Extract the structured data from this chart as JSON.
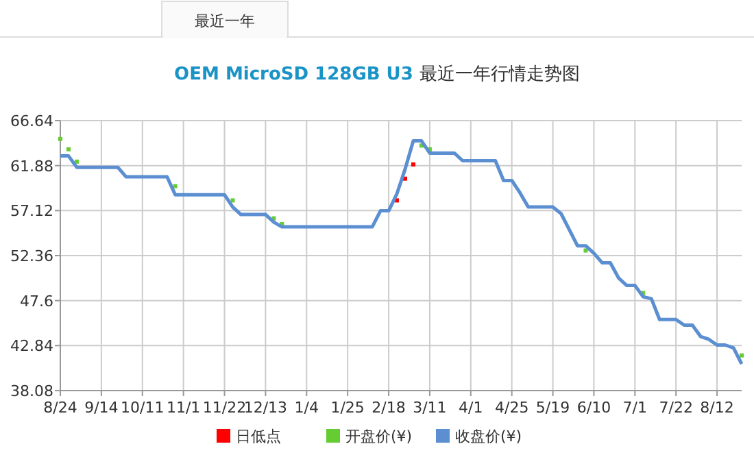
{
  "chart_data": {
    "type": "line",
    "title": "OEM MicroSD 128GB U3 最近一年行情走势图",
    "annotations": [
      "最近一年"
    ],
    "categories": [
      "8/24",
      null,
      null,
      null,
      null,
      "9/14",
      null,
      null,
      null,
      null,
      "10/11",
      null,
      null,
      null,
      null,
      "11/1",
      null,
      null,
      null,
      null,
      "11/22",
      null,
      null,
      null,
      null,
      "12/13",
      null,
      null,
      null,
      null,
      "1/4",
      null,
      null,
      null,
      null,
      "1/25",
      null,
      null,
      null,
      null,
      "2/18",
      null,
      null,
      null,
      null,
      "3/11",
      null,
      null,
      null,
      null,
      "4/1",
      null,
      null,
      null,
      null,
      "4/25",
      null,
      null,
      null,
      null,
      "5/19",
      null,
      null,
      null,
      null,
      "6/10",
      null,
      null,
      null,
      null,
      "7/1",
      null,
      null,
      null,
      null,
      "7/22",
      null,
      null,
      null,
      null,
      "8/12",
      null,
      null,
      null
    ],
    "ylim": [
      38.08,
      66.64
    ],
    "yticks": [
      38.08,
      42.84,
      47.6,
      52.36,
      57.12,
      61.88,
      66.64
    ],
    "grid": true,
    "legend": "bottom",
    "series": [
      {
        "name": "日低点",
        "type": "scatter",
        "marker": "square",
        "color": "#ff0000",
        "values": [
          null,
          null,
          null,
          null,
          null,
          null,
          null,
          null,
          null,
          null,
          null,
          null,
          null,
          null,
          null,
          null,
          null,
          null,
          null,
          null,
          null,
          null,
          null,
          null,
          null,
          null,
          null,
          null,
          null,
          null,
          null,
          null,
          null,
          null,
          null,
          null,
          null,
          null,
          null,
          null,
          null,
          58.2,
          60.5,
          62.0,
          null,
          null,
          null,
          null,
          null,
          null,
          null,
          null,
          null,
          null,
          null,
          null,
          null,
          null,
          null,
          null,
          null,
          null,
          null,
          null,
          null,
          null,
          null,
          null,
          null,
          null,
          null,
          null,
          null,
          null,
          null,
          null,
          null,
          null,
          null,
          null,
          null,
          null,
          null,
          null
        ]
      },
      {
        "name": "开盘价(¥)",
        "type": "scatter",
        "marker": "square",
        "color": "#66cc33",
        "values": [
          64.7,
          63.6,
          62.3,
          null,
          null,
          null,
          null,
          null,
          null,
          null,
          null,
          null,
          null,
          null,
          59.7,
          null,
          null,
          null,
          null,
          null,
          null,
          58.2,
          null,
          null,
          null,
          null,
          56.3,
          55.7,
          null,
          null,
          null,
          null,
          null,
          null,
          null,
          null,
          null,
          null,
          null,
          null,
          null,
          null,
          null,
          null,
          64.0,
          63.6,
          null,
          null,
          null,
          null,
          null,
          null,
          null,
          null,
          null,
          null,
          null,
          null,
          null,
          null,
          null,
          null,
          null,
          null,
          52.9,
          null,
          null,
          null,
          null,
          null,
          null,
          48.4,
          null,
          null,
          null,
          null,
          null,
          null,
          null,
          null,
          null,
          null,
          null,
          41.8
        ]
      },
      {
        "name": "收盘价(¥)",
        "marker": "none",
        "color": "#5b8fd1",
        "values": [
          62.9,
          62.9,
          61.7,
          61.7,
          61.7,
          61.7,
          61.7,
          61.7,
          60.7,
          60.7,
          60.7,
          60.7,
          60.7,
          60.7,
          58.8,
          58.8,
          58.8,
          58.8,
          58.8,
          58.8,
          58.8,
          57.5,
          56.7,
          56.7,
          56.7,
          56.7,
          55.9,
          55.4,
          55.4,
          55.4,
          55.4,
          55.4,
          55.4,
          55.4,
          55.4,
          55.4,
          55.4,
          55.4,
          55.4,
          57.1,
          57.1,
          58.9,
          61.5,
          64.5,
          64.5,
          63.2,
          63.2,
          63.2,
          63.2,
          62.4,
          62.4,
          62.4,
          62.4,
          62.4,
          60.3,
          60.3,
          59.0,
          57.5,
          57.5,
          57.5,
          57.5,
          56.8,
          55.1,
          53.4,
          53.4,
          52.6,
          51.6,
          51.6,
          50.0,
          49.2,
          49.2,
          48.0,
          47.8,
          45.6,
          45.6,
          45.6,
          45.0,
          45.0,
          43.8,
          43.5,
          42.9,
          42.9,
          42.6,
          40.9
        ]
      }
    ]
  }
}
